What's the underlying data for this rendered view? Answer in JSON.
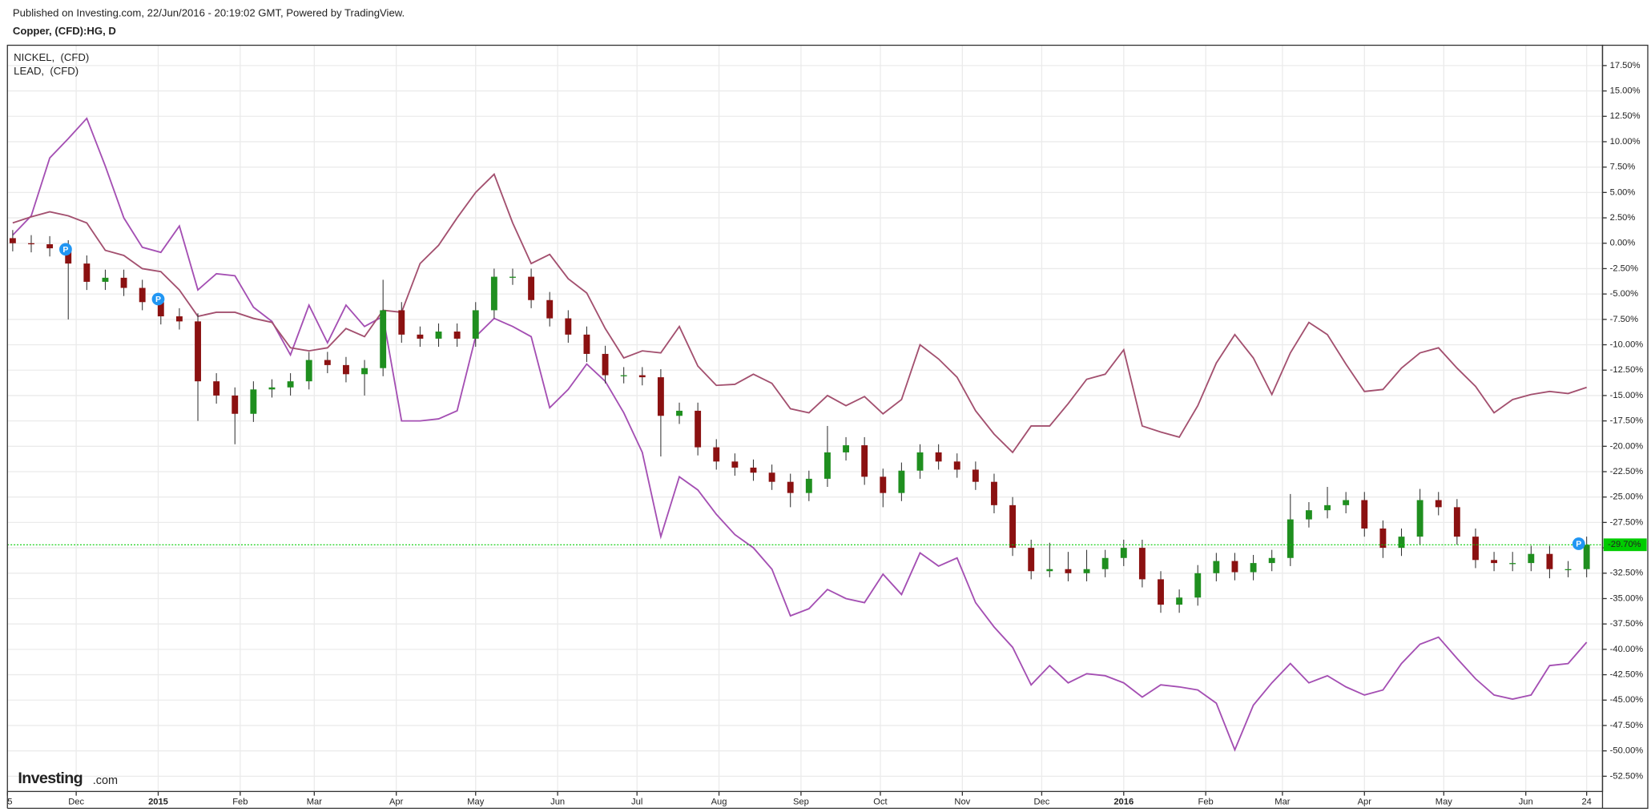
{
  "chart_data": {
    "type": "candlestick",
    "header": "Published on Investing.com, 22/Jun/2016 - 20:19:02 GMT, Powered by TradingView.",
    "title": "Copper, (CFD):HG, D",
    "logo": "Investing",
    "logo_suffix": ".com",
    "x": [
      "2014-11-07",
      "2014-11-14",
      "2014-11-21",
      "2014-11-28",
      "2014-12-05",
      "2014-12-12",
      "2014-12-19",
      "2014-12-26",
      "2015-01-02",
      "2015-01-09",
      "2015-01-16",
      "2015-01-23",
      "2015-01-30",
      "2015-02-06",
      "2015-02-13",
      "2015-02-20",
      "2015-02-27",
      "2015-03-06",
      "2015-03-13",
      "2015-03-20",
      "2015-03-27",
      "2015-04-03",
      "2015-04-10",
      "2015-04-17",
      "2015-04-24",
      "2015-05-01",
      "2015-05-08",
      "2015-05-15",
      "2015-05-22",
      "2015-05-29",
      "2015-06-05",
      "2015-06-12",
      "2015-06-19",
      "2015-06-26",
      "2015-07-03",
      "2015-07-10",
      "2015-07-17",
      "2015-07-24",
      "2015-07-31",
      "2015-08-07",
      "2015-08-14",
      "2015-08-21",
      "2015-08-28",
      "2015-09-04",
      "2015-09-11",
      "2015-09-18",
      "2015-09-25",
      "2015-10-02",
      "2015-10-09",
      "2015-10-16",
      "2015-10-23",
      "2015-10-30",
      "2015-11-06",
      "2015-11-13",
      "2015-11-20",
      "2015-11-27",
      "2015-12-04",
      "2015-12-11",
      "2015-12-18",
      "2015-12-25",
      "2016-01-01",
      "2016-01-08",
      "2016-01-15",
      "2016-01-22",
      "2016-01-29",
      "2016-02-05",
      "2016-02-12",
      "2016-02-19",
      "2016-02-26",
      "2016-03-04",
      "2016-03-11",
      "2016-03-18",
      "2016-03-25",
      "2016-04-01",
      "2016-04-08",
      "2016-04-15",
      "2016-04-22",
      "2016-04-29",
      "2016-05-06",
      "2016-05-13",
      "2016-05-20",
      "2016-05-27",
      "2016-06-03",
      "2016-06-10",
      "2016-06-17",
      "2016-06-24"
    ],
    "open": [
      0.5,
      0.0,
      -0.1,
      -0.5,
      -2.0,
      -3.8,
      -3.4,
      -4.4,
      -5.8,
      -7.2,
      -7.7,
      -13.6,
      -15.0,
      -16.8,
      -14.4,
      -14.2,
      -13.6,
      -11.5,
      -12.0,
      -12.9,
      -12.3,
      -6.6,
      -9.0,
      -9.4,
      -8.7,
      -9.4,
      -6.6,
      -3.3,
      -3.3,
      -5.6,
      -7.4,
      -9.0,
      -10.9,
      -13.0,
      -13.0,
      -13.2,
      -17.0,
      -16.5,
      -20.1,
      -21.5,
      -22.1,
      -22.6,
      -23.5,
      -24.6,
      -23.2,
      -20.6,
      -19.9,
      -23.0,
      -24.6,
      -22.4,
      -20.6,
      -21.5,
      -22.3,
      -23.5,
      -25.8,
      -30.0,
      -32.3,
      -32.1,
      -32.5,
      -32.1,
      -31.0,
      -30.0,
      -33.1,
      -35.6,
      -34.9,
      -32.5,
      -31.3,
      -32.4,
      -31.5,
      -31.0,
      -27.2,
      -26.3,
      -25.8,
      -25.3,
      -28.1,
      -30.0,
      -28.9,
      -25.3,
      -26.0,
      -28.9,
      -31.2,
      -31.5,
      -31.5,
      -30.6,
      -32.1,
      -32.1
    ],
    "high": [
      1.3,
      0.8,
      0.7,
      0.3,
      -1.2,
      -2.6,
      -2.6,
      -3.6,
      -5.0,
      -6.4,
      -6.9,
      -12.8,
      -14.2,
      -13.6,
      -13.4,
      -12.8,
      -10.7,
      -10.7,
      -11.2,
      -11.5,
      -3.6,
      -5.8,
      -8.2,
      -7.9,
      -7.9,
      -5.8,
      -2.5,
      -2.5,
      -2.5,
      -4.8,
      -6.6,
      -8.2,
      -10.1,
      -12.2,
      -12.2,
      -12.4,
      -15.7,
      -15.7,
      -19.3,
      -20.7,
      -21.3,
      -21.8,
      -22.7,
      -22.4,
      -18.0,
      -19.1,
      -19.1,
      -22.2,
      -21.6,
      -19.8,
      -19.8,
      -20.7,
      -21.5,
      -22.7,
      -25.0,
      -29.2,
      -29.5,
      -30.4,
      -30.2,
      -30.2,
      -29.2,
      -29.2,
      -32.3,
      -34.1,
      -31.7,
      -30.5,
      -30.5,
      -30.7,
      -30.2,
      -24.7,
      -25.5,
      -24.0,
      -24.5,
      -24.5,
      -27.3,
      -28.1,
      -24.2,
      -24.5,
      -25.2,
      -28.1,
      -30.4,
      -30.4,
      -29.8,
      -29.8,
      -31.3,
      -28.9
    ],
    "low": [
      -0.8,
      -0.9,
      -1.3,
      -7.5,
      -4.6,
      -4.6,
      -5.2,
      -6.6,
      -8.0,
      -8.5,
      -17.5,
      -15.8,
      -19.8,
      -17.6,
      -15.2,
      -15.0,
      -14.4,
      -12.8,
      -13.7,
      -15.0,
      -13.1,
      -9.8,
      -10.2,
      -10.2,
      -10.2,
      -10.2,
      -7.4,
      -4.1,
      -6.4,
      -8.2,
      -9.8,
      -11.7,
      -13.8,
      -13.8,
      -14.0,
      -21.0,
      -17.8,
      -20.9,
      -22.3,
      -22.9,
      -23.4,
      -24.3,
      -26.0,
      -25.4,
      -24.0,
      -21.4,
      -23.8,
      -26.0,
      -25.4,
      -23.2,
      -22.3,
      -23.1,
      -24.3,
      -26.6,
      -30.8,
      -33.1,
      -32.9,
      -33.3,
      -33.3,
      -32.9,
      -31.8,
      -33.9,
      -36.4,
      -36.4,
      -35.7,
      -33.3,
      -33.2,
      -33.2,
      -32.3,
      -31.8,
      -28.0,
      -27.1,
      -26.6,
      -28.9,
      -31.0,
      -30.8,
      -29.7,
      -26.8,
      -29.7,
      -32.0,
      -32.3,
      -32.3,
      -32.3,
      -33.0,
      -32.9,
      -32.9
    ],
    "close": [
      0.0,
      -0.1,
      -0.5,
      -2.0,
      -3.8,
      -3.4,
      -4.4,
      -5.8,
      -7.2,
      -7.7,
      -13.6,
      -15.0,
      -16.8,
      -14.4,
      -14.2,
      -13.6,
      -11.5,
      -12.0,
      -12.9,
      -12.3,
      -6.6,
      -9.0,
      -9.4,
      -8.7,
      -9.4,
      -6.6,
      -3.3,
      -3.3,
      -5.6,
      -7.4,
      -9.0,
      -10.9,
      -13.0,
      -13.0,
      -13.2,
      -17.0,
      -16.5,
      -20.1,
      -21.5,
      -22.1,
      -22.6,
      -23.5,
      -24.6,
      -23.2,
      -20.6,
      -19.9,
      -23.0,
      -24.6,
      -22.4,
      -20.6,
      -21.5,
      -22.3,
      -23.5,
      -25.8,
      -30.0,
      -32.3,
      -32.1,
      -32.5,
      -32.1,
      -31.0,
      -30.0,
      -33.1,
      -35.6,
      -34.9,
      -32.5,
      -31.3,
      -32.4,
      -31.5,
      -31.0,
      -27.2,
      -26.3,
      -25.8,
      -25.3,
      -28.1,
      -30.0,
      -28.9,
      -25.3,
      -26.0,
      -28.9,
      -31.2,
      -31.5,
      -31.5,
      -30.6,
      -32.1,
      -32.1,
      -29.7
    ],
    "up_color": "#1f8f1f",
    "down_color": "#8b1111",
    "series": [
      {
        "name": "NICKEL,  (CFD)",
        "color": "#a44fb3",
        "values": [
          0.8,
          2.7,
          8.4,
          10.3,
          12.3,
          7.6,
          2.5,
          -0.4,
          -0.9,
          1.7,
          -4.6,
          -3.0,
          -3.2,
          -6.3,
          -7.7,
          -11.0,
          -6.1,
          -9.8,
          -6.1,
          -8.2,
          -7.2,
          -17.5,
          -17.5,
          -17.3,
          -16.5,
          -9.2,
          -7.4,
          -8.2,
          -9.2,
          -16.2,
          -14.4,
          -11.9,
          -13.6,
          -16.7,
          -20.6,
          -28.9,
          -23.0,
          -24.3,
          -26.7,
          -28.7,
          -30.0,
          -32.1,
          -36.7,
          -36.0,
          -34.1,
          -35.0,
          -35.4,
          -32.6,
          -34.6,
          -30.5,
          -31.8,
          -31.0,
          -35.4,
          -37.8,
          -39.8,
          -43.5,
          -41.6,
          -43.3,
          -42.4,
          -42.6,
          -43.3,
          -44.7,
          -43.5,
          -43.7,
          -44.0,
          -45.3,
          -49.9,
          -45.5,
          -43.3,
          -41.4,
          -43.3,
          -42.6,
          -43.7,
          -44.5,
          -44.0,
          -41.4,
          -39.5,
          -38.8,
          -40.9,
          -42.9,
          -44.5,
          -44.9,
          -44.5,
          -41.6,
          -41.4,
          -39.3
        ]
      },
      {
        "name": "LEAD,  (CFD)",
        "color": "#a3506f",
        "values": [
          2.0,
          2.6,
          3.1,
          2.7,
          2.0,
          -0.7,
          -1.2,
          -2.5,
          -2.8,
          -4.6,
          -7.2,
          -6.8,
          -6.8,
          -7.4,
          -7.8,
          -10.3,
          -10.6,
          -10.3,
          -8.4,
          -9.2,
          -6.6,
          -6.8,
          -2.0,
          -0.2,
          2.5,
          5.0,
          6.8,
          2.0,
          -2.0,
          -1.1,
          -3.5,
          -4.9,
          -8.4,
          -11.3,
          -10.6,
          -10.8,
          -8.2,
          -12.1,
          -14.0,
          -13.9,
          -12.9,
          -13.8,
          -16.3,
          -16.7,
          -15.0,
          -16.0,
          -15.1,
          -16.8,
          -15.4,
          -10.0,
          -11.4,
          -13.2,
          -16.5,
          -18.8,
          -20.6,
          -18.0,
          -18.0,
          -15.8,
          -13.4,
          -12.9,
          -10.5,
          -18.0,
          -18.6,
          -19.1,
          -16.0,
          -11.8,
          -9.0,
          -11.3,
          -14.9,
          -10.8,
          -7.8,
          -9.0,
          -11.9,
          -14.6,
          -14.4,
          -12.3,
          -10.8,
          -10.3,
          -12.3,
          -14.1,
          -16.7,
          -15.4,
          -14.9,
          -14.6,
          -14.8,
          -14.2
        ]
      }
    ],
    "markers": [
      {
        "x": "2014-11-27",
        "y": -0.6,
        "label": "P"
      },
      {
        "x": "2015-01-01",
        "y": -5.5,
        "label": "P"
      },
      {
        "x": "2016-06-21",
        "y": -29.6,
        "label": "P"
      }
    ],
    "price_line": {
      "value": -29.7,
      "label": "-29.70%",
      "color": "#00cc00"
    },
    "xlim": [
      "2014-11-05",
      "2016-06-30"
    ],
    "xticks": [
      {
        "value": "2014-11-05",
        "label": "5"
      },
      {
        "value": "2014-12-01",
        "label": "Dec"
      },
      {
        "value": "2015-01-01",
        "label": "2015"
      },
      {
        "value": "2015-02-01",
        "label": "Feb"
      },
      {
        "value": "2015-03-01",
        "label": "Mar"
      },
      {
        "value": "2015-04-01",
        "label": "Apr"
      },
      {
        "value": "2015-05-01",
        "label": "May"
      },
      {
        "value": "2015-06-01",
        "label": "Jun"
      },
      {
        "value": "2015-07-01",
        "label": "Jul"
      },
      {
        "value": "2015-08-01",
        "label": "Aug"
      },
      {
        "value": "2015-09-01",
        "label": "Sep"
      },
      {
        "value": "2015-10-01",
        "label": "Oct"
      },
      {
        "value": "2015-11-01",
        "label": "Nov"
      },
      {
        "value": "2015-12-01",
        "label": "Dec"
      },
      {
        "value": "2016-01-01",
        "label": "2016"
      },
      {
        "value": "2016-02-01",
        "label": "Feb"
      },
      {
        "value": "2016-03-01",
        "label": "Mar"
      },
      {
        "value": "2016-04-01",
        "label": "Apr"
      },
      {
        "value": "2016-05-01",
        "label": "May"
      },
      {
        "value": "2016-06-01",
        "label": "Jun"
      },
      {
        "value": "2016-06-24",
        "label": "24"
      }
    ],
    "ylim": [
      -54,
      19.5
    ],
    "yticks": [
      {
        "value": 17.5,
        "label": "17.50%"
      },
      {
        "value": 15,
        "label": "15.00%"
      },
      {
        "value": 12.5,
        "label": "12.50%"
      },
      {
        "value": 10,
        "label": "10.00%"
      },
      {
        "value": 7.5,
        "label": "7.50%"
      },
      {
        "value": 5,
        "label": "5.00%"
      },
      {
        "value": 2.5,
        "label": "2.50%"
      },
      {
        "value": 0,
        "label": "0.00%"
      },
      {
        "value": -2.5,
        "label": "-2.50%"
      },
      {
        "value": -5,
        "label": "-5.00%"
      },
      {
        "value": -7.5,
        "label": "-7.50%"
      },
      {
        "value": -10,
        "label": "-10.00%"
      },
      {
        "value": -12.5,
        "label": "-12.50%"
      },
      {
        "value": -15,
        "label": "-15.00%"
      },
      {
        "value": -17.5,
        "label": "-17.50%"
      },
      {
        "value": -20,
        "label": "-20.00%"
      },
      {
        "value": -22.5,
        "label": "-22.50%"
      },
      {
        "value": -25,
        "label": "-25.00%"
      },
      {
        "value": -27.5,
        "label": "-27.50%"
      },
      {
        "value": -30,
        "label": "-30.00%"
      },
      {
        "value": -32.5,
        "label": "-32.50%"
      },
      {
        "value": -35,
        "label": "-35.00%"
      },
      {
        "value": -37.5,
        "label": "-37.50%"
      },
      {
        "value": -40,
        "label": "-40.00%"
      },
      {
        "value": -42.5,
        "label": "-42.50%"
      },
      {
        "value": -45,
        "label": "-45.00%"
      },
      {
        "value": -47.5,
        "label": "-47.50%"
      },
      {
        "value": -50,
        "label": "-50.00%"
      },
      {
        "value": -52.5,
        "label": "-52.50%"
      }
    ],
    "grid": true
  }
}
